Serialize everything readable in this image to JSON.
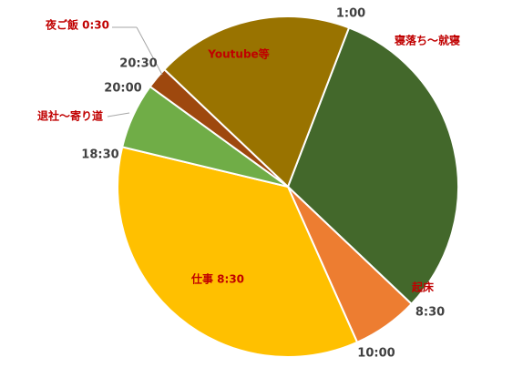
{
  "chart_data": {
    "type": "pie",
    "categories": [
      "寝落ち～就寝",
      "起床",
      "仕事 8:30",
      "退社～寄り道",
      "夜ご飯 0:30",
      "Youtube等"
    ],
    "values": [
      7.5,
      1.5,
      8.5,
      1.5,
      0.5,
      4.5
    ],
    "colors": [
      "#43682b",
      "#ed7d31",
      "#ffc000",
      "#70ad47",
      "#9e480e",
      "#997300"
    ],
    "time_labels": [
      "1:00",
      "8:30",
      "10:00",
      "18:30",
      "20:00",
      "20:30"
    ]
  }
}
